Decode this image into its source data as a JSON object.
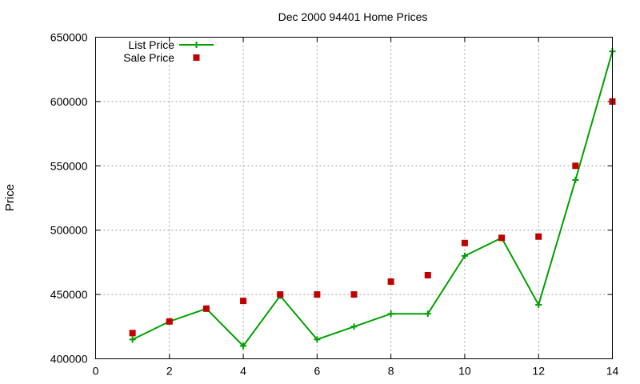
{
  "chart_data": {
    "type": "scatter",
    "title": "Dec 2000 94401 Home Prices",
    "xlabel": "",
    "ylabel": "Price",
    "xlim": [
      0,
      14
    ],
    "ylim": [
      400000,
      650000
    ],
    "xticks": [
      0,
      2,
      4,
      6,
      8,
      10,
      12,
      14
    ],
    "yticks": [
      400000,
      450000,
      500000,
      550000,
      600000,
      650000
    ],
    "grid": true,
    "legend_position": "top-left",
    "series": [
      {
        "name": "List Price",
        "style": "linespoints",
        "color": "#00a000",
        "x": [
          1,
          2,
          3,
          4,
          5,
          6,
          7,
          8,
          9,
          10,
          11,
          12,
          13,
          14
        ],
        "y": [
          415000,
          429000,
          439000,
          410000,
          449000,
          415000,
          425000,
          435000,
          435000,
          480000,
          494000,
          442000,
          539000,
          639000
        ]
      },
      {
        "name": "Sale Price",
        "style": "points",
        "color": "#c00000",
        "x": [
          1,
          2,
          3,
          4,
          5,
          6,
          7,
          8,
          9,
          10,
          11,
          12,
          13,
          14
        ],
        "y": [
          420000,
          429000,
          439000,
          445000,
          450000,
          450000,
          450000,
          460000,
          465000,
          490000,
          494000,
          495000,
          550000,
          600000
        ]
      }
    ]
  }
}
